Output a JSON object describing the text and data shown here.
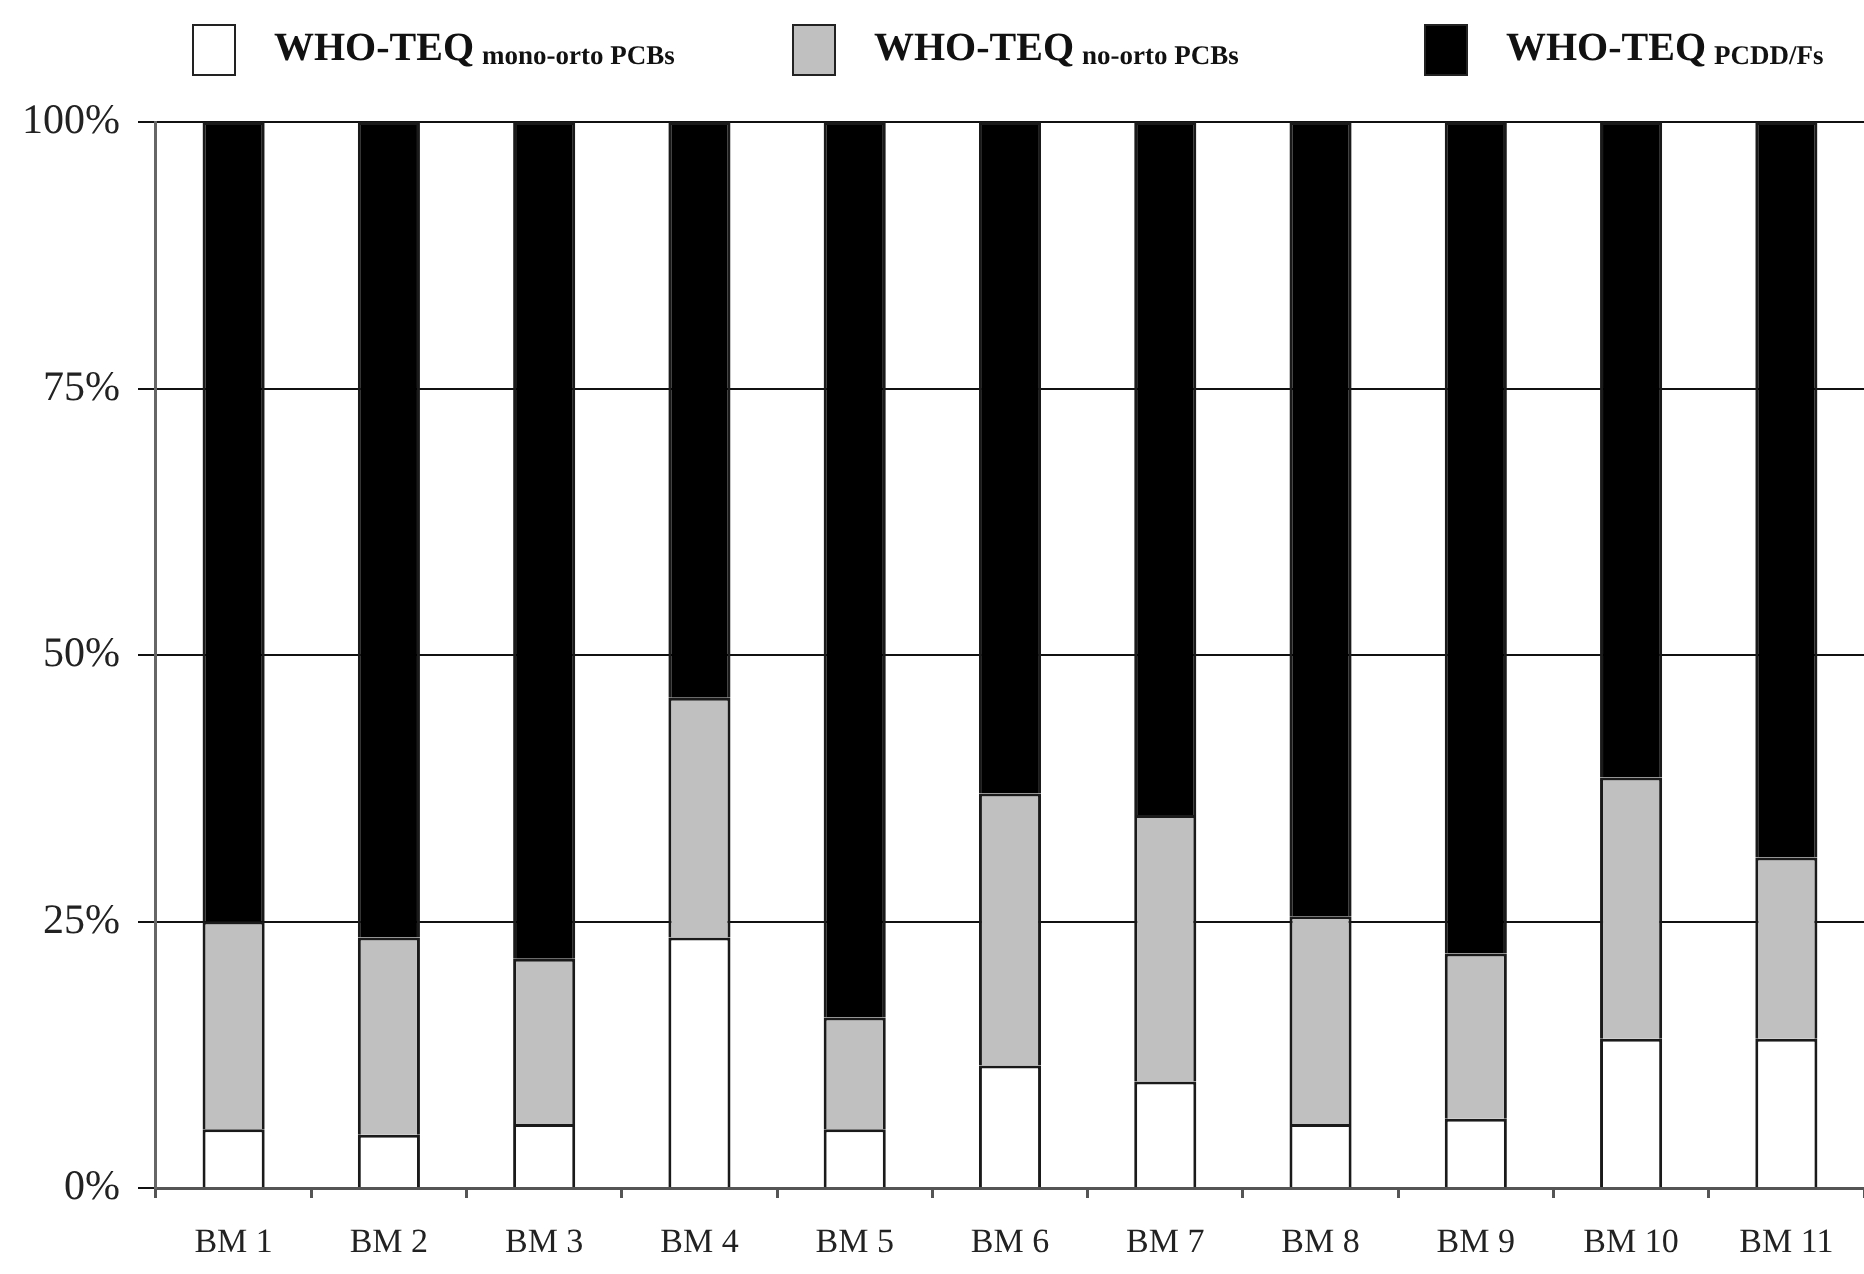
{
  "chart_data": {
    "type": "bar",
    "stacked": true,
    "categories": [
      "BM 1",
      "BM 2",
      "BM 3",
      "BM 4",
      "BM 5",
      "BM 6",
      "BM 7",
      "BM 8",
      "BM 9",
      "BM 10",
      "BM 11"
    ],
    "series": [
      {
        "name": "WHO-TEQ$_{mono-orto PCBs}$",
        "color": "#ffffff",
        "values": [
          5.5,
          5,
          6,
          23.5,
          5.5,
          11.5,
          10,
          6,
          6.5,
          14,
          14
        ]
      },
      {
        "name": "WHO-TEQ$_{no-orto PCBs}$",
        "color": "#c0c0c0",
        "values": [
          19.5,
          18.5,
          15.5,
          22.5,
          10.5,
          25.5,
          25,
          19.5,
          15.5,
          24.5,
          17
        ]
      },
      {
        "name": "WHO-TEQ$_{PCDD/Fs}$",
        "color": "#000000",
        "values": [
          75,
          76.5,
          78.5,
          54,
          84,
          63,
          65,
          74.5,
          78,
          61.5,
          69
        ]
      }
    ],
    "ylim": [
      0,
      100
    ],
    "yticks": [
      {
        "value": 0,
        "label": "0%"
      },
      {
        "value": 25,
        "label": "25%"
      },
      {
        "value": 50,
        "label": "50%"
      },
      {
        "value": 75,
        "label": "75%"
      },
      {
        "value": 100,
        "label": "100%"
      }
    ],
    "grid": "y",
    "legend": "top"
  }
}
